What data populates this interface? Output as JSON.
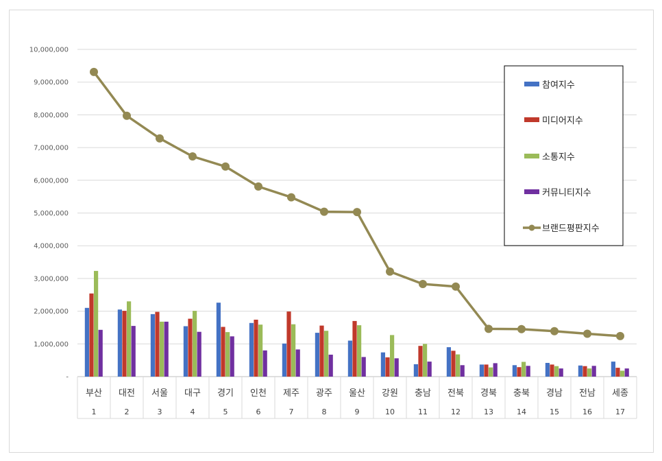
{
  "chart_data": {
    "type": "bar",
    "categories": [
      "부산",
      "대전",
      "서울",
      "대구",
      "경기",
      "인천",
      "제주",
      "광주",
      "울산",
      "강원",
      "충남",
      "전북",
      "경북",
      "충북",
      "경남",
      "전남",
      "세종"
    ],
    "ranks": [
      "1",
      "2",
      "3",
      "4",
      "5",
      "6",
      "7",
      "8",
      "9",
      "10",
      "11",
      "12",
      "13",
      "14",
      "15",
      "16",
      "17"
    ],
    "ylim": [
      0,
      10000000
    ],
    "yticks": [
      0,
      1000000,
      2000000,
      3000000,
      4000000,
      5000000,
      6000000,
      7000000,
      8000000,
      9000000,
      10000000
    ],
    "ytick_labels": [
      "-",
      "1,000,000",
      "2,000,000",
      "3,000,000",
      "4,000,000",
      "5,000,000",
      "6,000,000",
      "7,000,000",
      "8,000,000",
      "9,000,000",
      "10,000,000"
    ],
    "grid": true,
    "legend_position": "right",
    "series": [
      {
        "name": "참여지수",
        "type": "bar",
        "color": "#4472c4",
        "values": [
          2100000,
          2050000,
          1910000,
          1540000,
          2260000,
          1640000,
          1010000,
          1340000,
          1100000,
          740000,
          380000,
          900000,
          370000,
          350000,
          420000,
          340000,
          460000
        ]
      },
      {
        "name": "미디어지수",
        "type": "bar",
        "color": "#c0392b",
        "values": [
          2540000,
          2010000,
          1980000,
          1770000,
          1520000,
          1740000,
          1990000,
          1560000,
          1700000,
          590000,
          940000,
          790000,
          370000,
          290000,
          370000,
          320000,
          270000
        ]
      },
      {
        "name": "소통지수",
        "type": "bar",
        "color": "#9bbb59",
        "values": [
          3230000,
          2300000,
          1680000,
          2010000,
          1360000,
          1590000,
          1600000,
          1400000,
          1570000,
          1270000,
          1000000,
          680000,
          280000,
          450000,
          320000,
          250000,
          180000
        ]
      },
      {
        "name": "커뮤니티지수",
        "type": "bar",
        "color": "#7030a0",
        "values": [
          1430000,
          1550000,
          1680000,
          1370000,
          1230000,
          800000,
          830000,
          670000,
          600000,
          560000,
          460000,
          350000,
          410000,
          330000,
          250000,
          330000,
          250000
        ]
      },
      {
        "name": "브랜드평판지수",
        "type": "line",
        "color": "#938953",
        "values": [
          9310000,
          7970000,
          7280000,
          6730000,
          6420000,
          5810000,
          5480000,
          5040000,
          5030000,
          3210000,
          2830000,
          2750000,
          1460000,
          1450000,
          1390000,
          1310000,
          1240000
        ]
      }
    ]
  }
}
